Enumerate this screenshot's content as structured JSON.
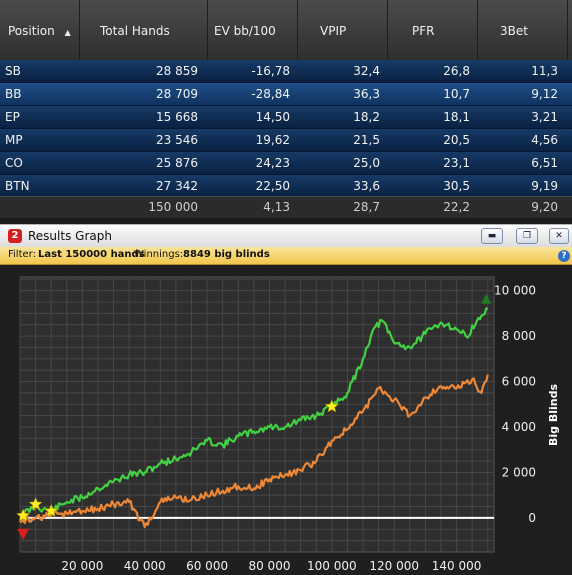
{
  "table": {
    "headers": [
      "Position",
      "Total Hands",
      "EV bb/100",
      "VPIP",
      "PFR",
      "3Bet"
    ],
    "sort_indicator": "▲",
    "rows": [
      [
        "SB",
        "28 859",
        "-16,78",
        "32,4",
        "26,8",
        "11,3"
      ],
      [
        "BB",
        "28 709",
        "-28,84",
        "36,3",
        "10,7",
        "9,12"
      ],
      [
        "EP",
        "15 668",
        "14,50",
        "18,2",
        "18,1",
        "3,21"
      ],
      [
        "MP",
        "23 546",
        "19,62",
        "21,5",
        "20,5",
        "4,56"
      ],
      [
        "CO",
        "25 876",
        "24,23",
        "25,0",
        "23,1",
        "6,51"
      ],
      [
        "BTN",
        "27 342",
        "22,50",
        "33,6",
        "30,5",
        "9,19"
      ]
    ],
    "totals": [
      "",
      "150 000",
      "4,13",
      "28,7",
      "22,2",
      "9,20"
    ]
  },
  "window": {
    "logo": "2",
    "title": "Results Graph",
    "controls": {
      "minimize": "▬",
      "restore": "❐",
      "close": "✕"
    },
    "filter": {
      "label": "Filter:",
      "value": "Last 150000 hands",
      "winnings_label": "Winnings:",
      "winnings_value": "8849 big blinds"
    },
    "help": "?"
  },
  "chart_data": {
    "type": "line",
    "ylabel": "Big Blinds",
    "xlabel": "",
    "xlim": [
      0,
      152000
    ],
    "ylim": [
      -1500,
      10600
    ],
    "x_ticks": [
      20000,
      40000,
      60000,
      80000,
      100000,
      120000,
      140000
    ],
    "x_tick_labels": [
      "20 000",
      "40 000",
      "60 000",
      "80 000",
      "100 000",
      "120 000",
      "140 000"
    ],
    "y_ticks": [
      0,
      2000,
      4000,
      6000,
      8000,
      10000
    ],
    "y_tick_labels": [
      "0",
      "2 000",
      "4 000",
      "6 000",
      "8 000",
      "10 000"
    ],
    "grid": true,
    "zero_line": true,
    "colors": {
      "winnings": "#43d043",
      "ev": "#ec8838",
      "zero": "#ffffff",
      "star": "#ffee22",
      "start_marker": "#d81e1e",
      "end_marker": "#1f7a1f"
    },
    "series": [
      {
        "name": "",
        "color": "#43d043",
        "x": [
          0,
          5000,
          10000,
          15000,
          20000,
          25000,
          30000,
          35000,
          40000,
          45000,
          50000,
          55000,
          60000,
          65000,
          70000,
          75000,
          80000,
          85000,
          90000,
          95000,
          100000,
          105000,
          110000,
          113000,
          116000,
          120000,
          125000,
          130000,
          135000,
          137000,
          140000,
          143000,
          146000,
          148000,
          150000
        ],
        "y": [
          100,
          500,
          300,
          700,
          900,
          1300,
          1600,
          1900,
          2000,
          2400,
          2600,
          2900,
          3400,
          3200,
          3600,
          3800,
          4000,
          4000,
          4300,
          4500,
          4900,
          5500,
          7000,
          8200,
          8700,
          7700,
          7500,
          8100,
          8600,
          8500,
          8300,
          8000,
          8500,
          8900,
          9200
        ]
      },
      {
        "name": "",
        "color": "#ec8838",
        "x": [
          0,
          5000,
          10000,
          15000,
          20000,
          25000,
          30000,
          35000,
          40000,
          45000,
          50000,
          55000,
          60000,
          65000,
          70000,
          75000,
          80000,
          85000,
          90000,
          95000,
          100000,
          105000,
          110000,
          115000,
          120000,
          125000,
          130000,
          135000,
          140000,
          145000,
          148000,
          150000
        ],
        "y": [
          -200,
          0,
          100,
          200,
          300,
          400,
          600,
          700,
          -400,
          700,
          900,
          800,
          1000,
          1200,
          1400,
          1300,
          1700,
          1900,
          2100,
          2500,
          3400,
          3900,
          4700,
          5700,
          5200,
          4500,
          5300,
          5800,
          5700,
          6100,
          5500,
          6300
        ]
      }
    ],
    "star_markers": [
      {
        "x": 1000,
        "y": 100
      },
      {
        "x": 5000,
        "y": 600
      },
      {
        "x": 10000,
        "y": 300
      },
      {
        "x": 100000,
        "y": 4900
      }
    ],
    "start_marker": {
      "x": 1000,
      "y": -700
    },
    "end_marker": {
      "x": 149500,
      "y": 9600
    }
  }
}
